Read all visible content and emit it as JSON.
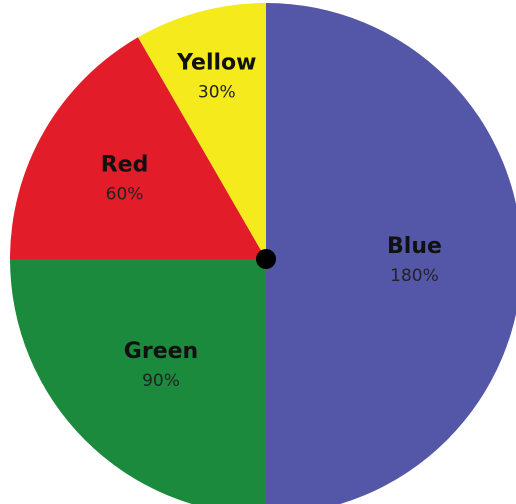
{
  "chart_data": {
    "type": "pie",
    "title": "",
    "slices": [
      {
        "label": "Blue",
        "value_text": "180%",
        "value": 180,
        "color": "#5457a7"
      },
      {
        "label": "Green",
        "value_text": "90%",
        "value": 90,
        "color": "#1b8a3c"
      },
      {
        "label": "Red",
        "value_text": "60%",
        "value": 60,
        "color": "#e31c2a"
      },
      {
        "label": "Yellow",
        "value_text": "30%",
        "value": 30,
        "color": "#f4ea1c"
      }
    ],
    "center_dot_color": "#000000",
    "legend": "none"
  }
}
